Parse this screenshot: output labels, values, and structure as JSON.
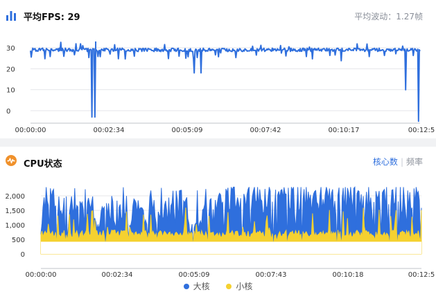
{
  "fps_panel": {
    "title_label": "平均FPS: ",
    "title_value": "29",
    "avg_fluctuation": "平均波动：1.27帧"
  },
  "cpu_panel": {
    "title": "CPU状态",
    "mode_active": "核心数",
    "mode_inactive": "频率",
    "legend": [
      {
        "name": "大核",
        "color": "#2f6fdd"
      },
      {
        "name": "小核",
        "color": "#f5d130"
      }
    ]
  },
  "colors": {
    "accent": "#2f6fdd",
    "big_core": "#2f6fdd",
    "little_core": "#f5d130",
    "fps_line": "#2f6fdd",
    "cpu_icon": "#f0912b"
  },
  "chart_data": [
    {
      "type": "line",
      "name": "fps",
      "title": "",
      "xlabel": "",
      "ylabel": "",
      "y_ticks": [
        "30",
        "20",
        "10",
        "0"
      ],
      "ylim": [
        -3,
        33
      ],
      "x_ticks": [
        "00:00:00",
        "00:02:34",
        "00:05:09",
        "00:07:42",
        "00:10:17",
        "00:12:5"
      ],
      "duration_seconds": 771,
      "baseline": 29,
      "dips": [
        {
          "t": 121,
          "value": -3
        },
        {
          "t": 127,
          "value": -3
        },
        {
          "t": 324,
          "value": 18
        },
        {
          "t": 337,
          "value": 18
        },
        {
          "t": 742,
          "value": 10
        },
        {
          "t": 768,
          "value": -5
        }
      ],
      "grid": true
    },
    {
      "type": "area",
      "name": "cpu",
      "title": "",
      "xlabel": "",
      "ylabel": "",
      "y_ticks": [
        "2,000",
        "1,500",
        "1,000",
        "500",
        "0"
      ],
      "ylim": [
        -250,
        2400
      ],
      "x_ticks": [
        "00:00:00",
        "00:02:34",
        "00:05:09",
        "00:07:43",
        "00:10:18",
        "00:12:5"
      ],
      "series": [
        {
          "name": "大核",
          "range": [
            300,
            2300
          ],
          "typical": 1500
        },
        {
          "name": "小核",
          "range": [
            400,
            1600
          ],
          "typical": 650
        }
      ],
      "grid": true
    }
  ]
}
